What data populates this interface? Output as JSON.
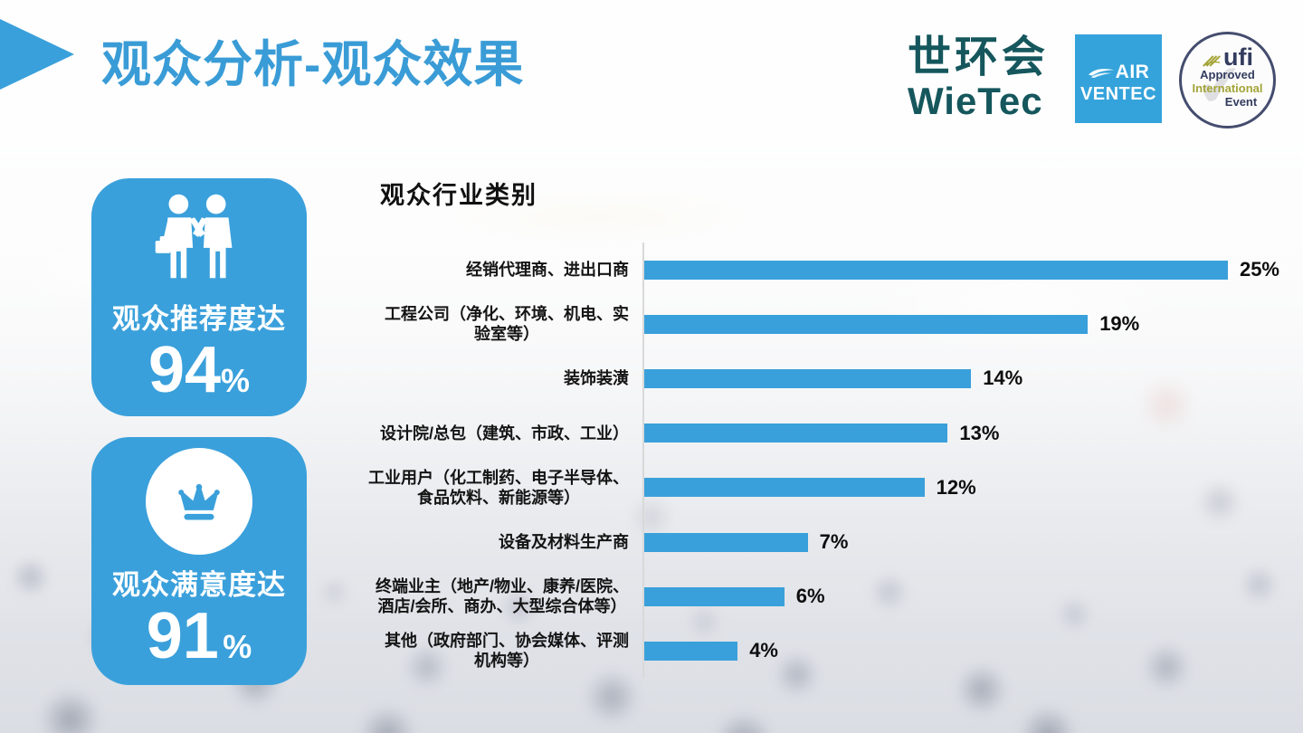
{
  "header": {
    "title": "观众分析-观众效果"
  },
  "logos": {
    "wietec": {
      "cn": "世环会",
      "en": "WieTec"
    },
    "airventec": {
      "line1": "AIR",
      "line2": "VENTEC"
    },
    "ufi": {
      "brand": "ufi",
      "line1": "Approved",
      "line2": "International",
      "line3": "Event"
    }
  },
  "stats": [
    {
      "label": "观众推荐度达",
      "value": "94",
      "unit": "%",
      "icon": "handshake-people-icon"
    },
    {
      "label": "观众满意度达",
      "value": "91",
      "unit": "%",
      "icon": "crown-icon"
    }
  ],
  "chart_data": {
    "type": "bar",
    "orientation": "horizontal",
    "title": "观众行业类别",
    "categories": [
      "经销代理商、进出口商",
      "工程公司（净化、环境、机电、实\n验室等）",
      "装饰装潢",
      "设计院/总包（建筑、市政、工业）",
      "工业用户（化工制药、电子半导体、\n食品饮料、新能源等）",
      "设备及材料生产商",
      "终端业主（地产/物业、康养/医院、\n酒店/会所、商办、大型综合体等）",
      "其他（政府部门、协会媒体、评测\n机构等）"
    ],
    "values": [
      25,
      19,
      14,
      13,
      12,
      7,
      6,
      4
    ],
    "value_labels": [
      "25%",
      "19%",
      "14%",
      "13%",
      "12%",
      "7%",
      "6%",
      "4%"
    ],
    "xlim": [
      0,
      26
    ],
    "grid": false,
    "legend": false,
    "bar_color": "#3AA0DB"
  },
  "colors": {
    "accent": "#3AA0DB",
    "title_blue": "#3A9CD6",
    "wietec_teal": "#15575D",
    "ufi_navy": "#333C5E",
    "ufi_olive": "#A3A437",
    "text_dark": "#141414",
    "axis_gray": "#D9D9D9"
  }
}
